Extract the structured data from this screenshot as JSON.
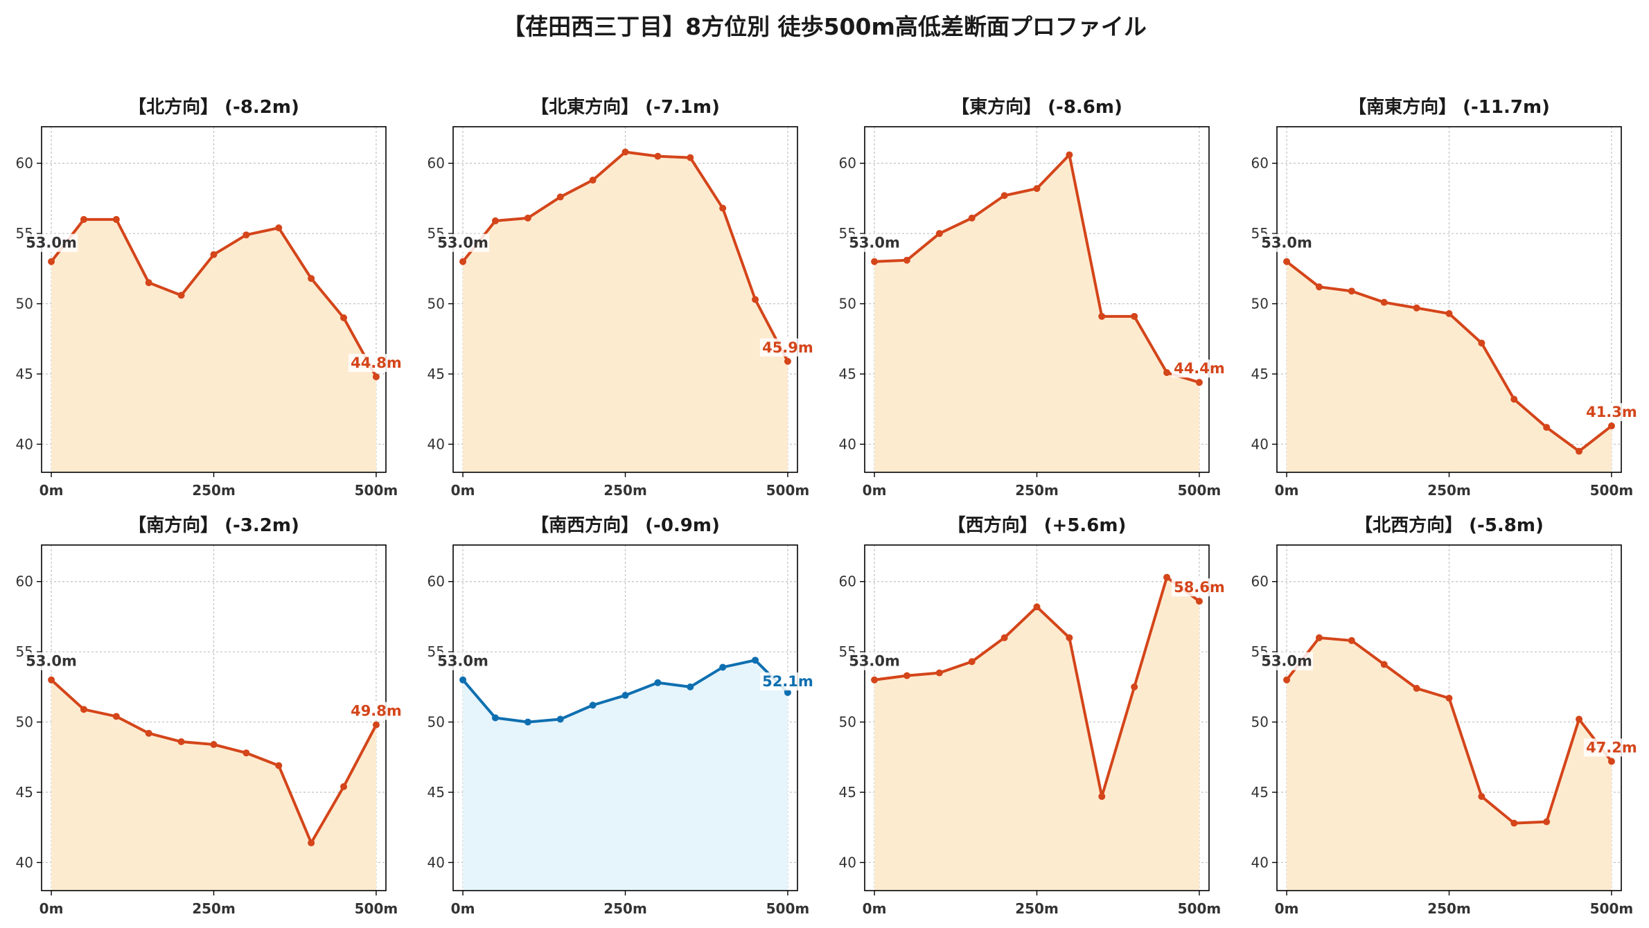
{
  "title": "【荏田西三丁目】8方位別 徒歩500m高低差断面プロファイル",
  "colors": {
    "down_line": "#d4451a",
    "down_fill": "#fdebd0",
    "up_line": "#0e6fb0",
    "up_fill": "#e6f4fb",
    "start_label": "#333333",
    "grid": "#c0c0c0"
  },
  "chart_data": [
    {
      "type": "area",
      "title": "【北方向】 (-8.2m)",
      "theme": "down",
      "x": [
        0,
        50,
        100,
        150,
        200,
        250,
        300,
        350,
        400,
        450,
        500
      ],
      "y": [
        53.0,
        56.0,
        56.0,
        51.5,
        50.6,
        53.5,
        54.9,
        55.4,
        51.8,
        49.0,
        44.8
      ],
      "xticks": [
        "0m",
        "250m",
        "500m"
      ],
      "yticks": [
        40,
        45,
        50,
        55,
        60
      ],
      "xlim": [
        -15,
        515
      ],
      "ylim": [
        38,
        62.6
      ],
      "grid": true,
      "start_label": "53.0m",
      "end_label": "44.8m"
    },
    {
      "type": "area",
      "title": "【北東方向】 (-7.1m)",
      "theme": "down",
      "x": [
        0,
        50,
        100,
        150,
        200,
        250,
        300,
        350,
        400,
        450,
        500
      ],
      "y": [
        53.0,
        55.9,
        56.1,
        57.6,
        58.8,
        60.8,
        60.5,
        60.4,
        56.8,
        50.3,
        45.9
      ],
      "xticks": [
        "0m",
        "250m",
        "500m"
      ],
      "yticks": [
        40,
        45,
        50,
        55,
        60
      ],
      "xlim": [
        -15,
        515
      ],
      "ylim": [
        38,
        62.6
      ],
      "grid": true,
      "start_label": "53.0m",
      "end_label": "45.9m"
    },
    {
      "type": "area",
      "title": "【東方向】 (-8.6m)",
      "theme": "down",
      "x": [
        0,
        50,
        100,
        150,
        200,
        250,
        300,
        350,
        400,
        450,
        500
      ],
      "y": [
        53.0,
        53.1,
        55.0,
        56.1,
        57.7,
        58.2,
        60.6,
        49.1,
        49.1,
        45.1,
        44.4
      ],
      "xticks": [
        "0m",
        "250m",
        "500m"
      ],
      "yticks": [
        40,
        45,
        50,
        55,
        60
      ],
      "xlim": [
        -15,
        515
      ],
      "ylim": [
        38,
        62.6
      ],
      "grid": true,
      "start_label": "53.0m",
      "end_label": "44.4m"
    },
    {
      "type": "area",
      "title": "【南東方向】 (-11.7m)",
      "theme": "down",
      "x": [
        0,
        50,
        100,
        150,
        200,
        250,
        300,
        350,
        400,
        450,
        500
      ],
      "y": [
        53.0,
        51.2,
        50.9,
        50.1,
        49.7,
        49.3,
        47.2,
        43.2,
        41.2,
        39.5,
        41.3
      ],
      "xticks": [
        "0m",
        "250m",
        "500m"
      ],
      "yticks": [
        40,
        45,
        50,
        55,
        60
      ],
      "xlim": [
        -15,
        515
      ],
      "ylim": [
        38,
        62.6
      ],
      "grid": true,
      "start_label": "53.0m",
      "end_label": "41.3m"
    },
    {
      "type": "area",
      "title": "【南方向】 (-3.2m)",
      "theme": "down",
      "x": [
        0,
        50,
        100,
        150,
        200,
        250,
        300,
        350,
        400,
        450,
        500
      ],
      "y": [
        53.0,
        50.9,
        50.4,
        49.2,
        48.6,
        48.4,
        47.8,
        46.9,
        41.4,
        45.4,
        49.8
      ],
      "xticks": [
        "0m",
        "250m",
        "500m"
      ],
      "yticks": [
        40,
        45,
        50,
        55,
        60
      ],
      "xlim": [
        -15,
        515
      ],
      "ylim": [
        38,
        62.6
      ],
      "grid": true,
      "start_label": "53.0m",
      "end_label": "49.8m"
    },
    {
      "type": "area",
      "title": "【南西方向】 (-0.9m)",
      "theme": "up",
      "x": [
        0,
        50,
        100,
        150,
        200,
        250,
        300,
        350,
        400,
        450,
        500
      ],
      "y": [
        53.0,
        50.3,
        50.0,
        50.2,
        51.2,
        51.9,
        52.8,
        52.5,
        53.9,
        54.4,
        52.1
      ],
      "xticks": [
        "0m",
        "250m",
        "500m"
      ],
      "yticks": [
        40,
        45,
        50,
        55,
        60
      ],
      "xlim": [
        -15,
        515
      ],
      "ylim": [
        38,
        62.6
      ],
      "grid": true,
      "start_label": "53.0m",
      "end_label": "52.1m"
    },
    {
      "type": "area",
      "title": "【西方向】 (+5.6m)",
      "theme": "down",
      "x": [
        0,
        50,
        100,
        150,
        200,
        250,
        300,
        350,
        400,
        450,
        500
      ],
      "y": [
        53.0,
        53.3,
        53.5,
        54.3,
        56.0,
        58.2,
        56.0,
        44.7,
        52.5,
        60.3,
        58.6
      ],
      "xticks": [
        "0m",
        "250m",
        "500m"
      ],
      "yticks": [
        40,
        45,
        50,
        55,
        60
      ],
      "xlim": [
        -15,
        515
      ],
      "ylim": [
        38,
        62.6
      ],
      "grid": true,
      "start_label": "53.0m",
      "end_label": "58.6m"
    },
    {
      "type": "area",
      "title": "【北西方向】 (-5.8m)",
      "theme": "down",
      "x": [
        0,
        50,
        100,
        150,
        200,
        250,
        300,
        350,
        400,
        450,
        500
      ],
      "y": [
        53.0,
        56.0,
        55.8,
        54.1,
        52.4,
        51.7,
        44.7,
        42.8,
        42.9,
        50.2,
        47.2
      ],
      "xticks": [
        "0m",
        "250m",
        "500m"
      ],
      "yticks": [
        40,
        45,
        50,
        55,
        60
      ],
      "xlim": [
        -15,
        515
      ],
      "ylim": [
        38,
        62.6
      ],
      "grid": true,
      "start_label": "53.0m",
      "end_label": "47.2m"
    }
  ]
}
